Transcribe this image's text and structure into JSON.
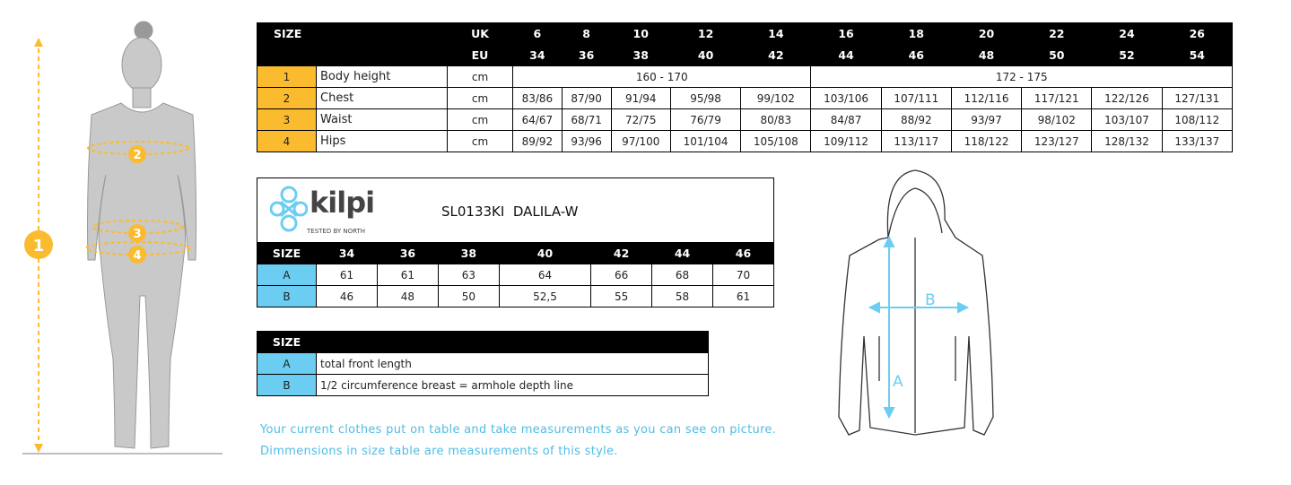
{
  "size_chart": {
    "size_label": "SIZE",
    "uk_label": "UK",
    "eu_label": "EU",
    "uk": [
      "6",
      "8",
      "10",
      "12",
      "14",
      "16",
      "18",
      "20",
      "22",
      "24",
      "26"
    ],
    "eu": [
      "34",
      "36",
      "38",
      "40",
      "42",
      "44",
      "46",
      "48",
      "50",
      "52",
      "54"
    ],
    "body_height": {
      "num": "1",
      "label": "Body height",
      "unit": "cm",
      "ranges": [
        "160 - 170",
        "172 - 175"
      ]
    },
    "rows": [
      {
        "num": "2",
        "label": "Chest",
        "unit": "cm",
        "values": [
          "83/86",
          "87/90",
          "91/94",
          "95/98",
          "99/102",
          "103/106",
          "107/111",
          "112/116",
          "117/121",
          "122/126",
          "127/131"
        ]
      },
      {
        "num": "3",
        "label": "Waist",
        "unit": "cm",
        "values": [
          "64/67",
          "68/71",
          "72/75",
          "76/79",
          "80/83",
          "84/87",
          "88/92",
          "93/97",
          "98/102",
          "103/107",
          "108/112"
        ]
      },
      {
        "num": "4",
        "label": "Hips",
        "unit": "cm",
        "values": [
          "89/92",
          "93/96",
          "97/100",
          "101/104",
          "105/108",
          "109/112",
          "113/117",
          "118/122",
          "123/127",
          "128/132",
          "133/137"
        ]
      }
    ]
  },
  "product": {
    "brand": "kilpi",
    "tagline": "Tested by North",
    "title": "SL0133KI  DALILA-W",
    "size_label": "SIZE",
    "sizes": [
      "34",
      "36",
      "38",
      "40",
      "42",
      "44",
      "46"
    ],
    "rows": [
      {
        "label": "A",
        "values": [
          "61",
          "61",
          "63",
          "64",
          "66",
          "68",
          "70"
        ]
      },
      {
        "label": "B",
        "values": [
          "46",
          "48",
          "50",
          "52,5",
          "55",
          "58",
          "61"
        ]
      }
    ]
  },
  "legend": {
    "size_label": "SIZE",
    "rows": [
      {
        "label": "A",
        "text": "total front length"
      },
      {
        "label": "B",
        "text": "1/2 circumference breast = armhole depth line"
      }
    ]
  },
  "notes": [
    "Your current clothes put on table and take measurements as you can see on picture.",
    "Dimmensions in size table are measurements of this style."
  ],
  "figure": {
    "markers": [
      "1",
      "2",
      "3",
      "4"
    ],
    "jacket_labels": [
      "A",
      "B"
    ]
  },
  "colors": {
    "yellow": "#fbbb2e",
    "blue": "#6ccdf2",
    "note": "#4fbde6"
  }
}
